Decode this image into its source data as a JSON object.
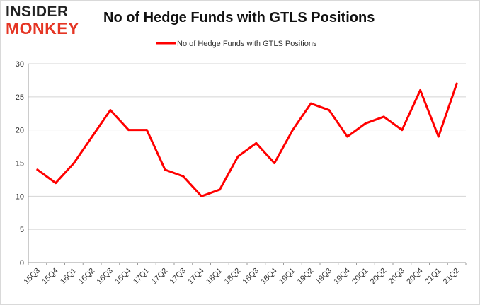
{
  "logo": {
    "line1": "INSIDER",
    "line2": "MONKEY"
  },
  "chart_data": {
    "type": "line",
    "title": "No of Hedge Funds with GTLS Positions",
    "xlabel": "",
    "ylabel": "",
    "categories": [
      "15Q3",
      "15Q4",
      "16Q1",
      "16Q2",
      "16Q3",
      "16Q4",
      "17Q1",
      "17Q2",
      "17Q3",
      "17Q4",
      "18Q1",
      "18Q2",
      "18Q3",
      "18Q4",
      "19Q1",
      "19Q2",
      "19Q3",
      "19Q4",
      "20Q1",
      "20Q2",
      "20Q3",
      "20Q4",
      "21Q1",
      "21Q2"
    ],
    "series": [
      {
        "name": "No of Hedge Funds with GTLS Positions",
        "color": "#ff0000",
        "values": [
          14,
          12,
          15,
          19,
          23,
          20,
          20,
          14,
          13,
          10,
          11,
          16,
          18,
          15,
          20,
          24,
          23,
          19,
          21,
          22,
          20,
          26,
          19,
          27
        ]
      }
    ],
    "ylim": [
      0,
      30
    ],
    "yticks": [
      0,
      5,
      10,
      15,
      20,
      25,
      30
    ],
    "grid": true,
    "legend_position": "top-center"
  }
}
